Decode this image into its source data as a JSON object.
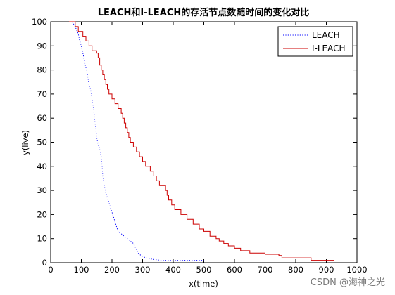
{
  "chart_data": {
    "type": "line",
    "title": "LEACH和I-LEACH的存活节点数随时间的变化对比",
    "xlabel": "x(time)",
    "ylabel": "y(live)",
    "xlim": [
      0,
      1000
    ],
    "ylim": [
      0,
      100
    ],
    "xticks": [
      0,
      100,
      200,
      300,
      400,
      500,
      600,
      700,
      800,
      900,
      1000
    ],
    "yticks": [
      0,
      10,
      20,
      30,
      40,
      50,
      60,
      70,
      80,
      90,
      100
    ],
    "grid": false,
    "legend_position": "top-right",
    "series": [
      {
        "name": "LEACH",
        "color": "#0000ff",
        "style": "dotted",
        "points": [
          [
            70,
            100
          ],
          [
            80,
            98
          ],
          [
            90,
            95
          ],
          [
            95,
            92
          ],
          [
            100,
            90
          ],
          [
            105,
            87
          ],
          [
            110,
            84
          ],
          [
            115,
            81
          ],
          [
            120,
            78
          ],
          [
            125,
            74
          ],
          [
            130,
            72
          ],
          [
            135,
            68
          ],
          [
            140,
            64
          ],
          [
            143,
            60
          ],
          [
            147,
            56
          ],
          [
            150,
            52
          ],
          [
            155,
            49
          ],
          [
            160,
            47
          ],
          [
            165,
            44
          ],
          [
            168,
            40
          ],
          [
            170,
            36
          ],
          [
            175,
            32
          ],
          [
            180,
            29
          ],
          [
            185,
            27
          ],
          [
            190,
            25
          ],
          [
            195,
            23
          ],
          [
            200,
            21
          ],
          [
            205,
            19
          ],
          [
            210,
            17
          ],
          [
            215,
            15
          ],
          [
            220,
            13
          ],
          [
            230,
            12
          ],
          [
            240,
            11
          ],
          [
            250,
            10
          ],
          [
            260,
            9
          ],
          [
            270,
            8
          ],
          [
            278,
            6
          ],
          [
            285,
            4
          ],
          [
            295,
            3
          ],
          [
            310,
            2
          ],
          [
            330,
            1.5
          ],
          [
            360,
            1
          ],
          [
            400,
            1
          ],
          [
            450,
            1
          ],
          [
            500,
            1
          ]
        ]
      },
      {
        "name": "I-LEACH",
        "color": "#cc0000",
        "style": "solid",
        "points": [
          [
            60,
            100
          ],
          [
            80,
            98
          ],
          [
            90,
            96
          ],
          [
            105,
            94
          ],
          [
            115,
            92
          ],
          [
            125,
            90
          ],
          [
            135,
            88
          ],
          [
            150,
            87
          ],
          [
            155,
            85
          ],
          [
            160,
            82
          ],
          [
            165,
            80
          ],
          [
            170,
            78
          ],
          [
            175,
            76
          ],
          [
            180,
            74
          ],
          [
            185,
            72
          ],
          [
            190,
            70
          ],
          [
            200,
            68
          ],
          [
            210,
            66
          ],
          [
            220,
            64
          ],
          [
            230,
            62
          ],
          [
            235,
            60
          ],
          [
            240,
            58
          ],
          [
            245,
            56
          ],
          [
            250,
            54
          ],
          [
            255,
            52
          ],
          [
            260,
            50
          ],
          [
            270,
            48
          ],
          [
            280,
            46
          ],
          [
            290,
            44
          ],
          [
            300,
            42
          ],
          [
            310,
            40
          ],
          [
            325,
            38
          ],
          [
            335,
            36
          ],
          [
            345,
            34
          ],
          [
            355,
            32
          ],
          [
            375,
            30
          ],
          [
            380,
            28
          ],
          [
            385,
            26
          ],
          [
            395,
            24
          ],
          [
            405,
            22
          ],
          [
            425,
            20
          ],
          [
            445,
            18
          ],
          [
            465,
            16
          ],
          [
            485,
            14
          ],
          [
            500,
            13
          ],
          [
            520,
            11
          ],
          [
            540,
            10
          ],
          [
            550,
            9
          ],
          [
            565,
            8
          ],
          [
            580,
            7
          ],
          [
            600,
            6
          ],
          [
            620,
            5
          ],
          [
            650,
            4
          ],
          [
            700,
            3.5
          ],
          [
            745,
            3
          ],
          [
            755,
            2
          ],
          [
            800,
            2
          ],
          [
            850,
            1
          ],
          [
            900,
            1
          ],
          [
            925,
            1
          ]
        ]
      }
    ]
  },
  "watermark": "CSDN @海神之光"
}
